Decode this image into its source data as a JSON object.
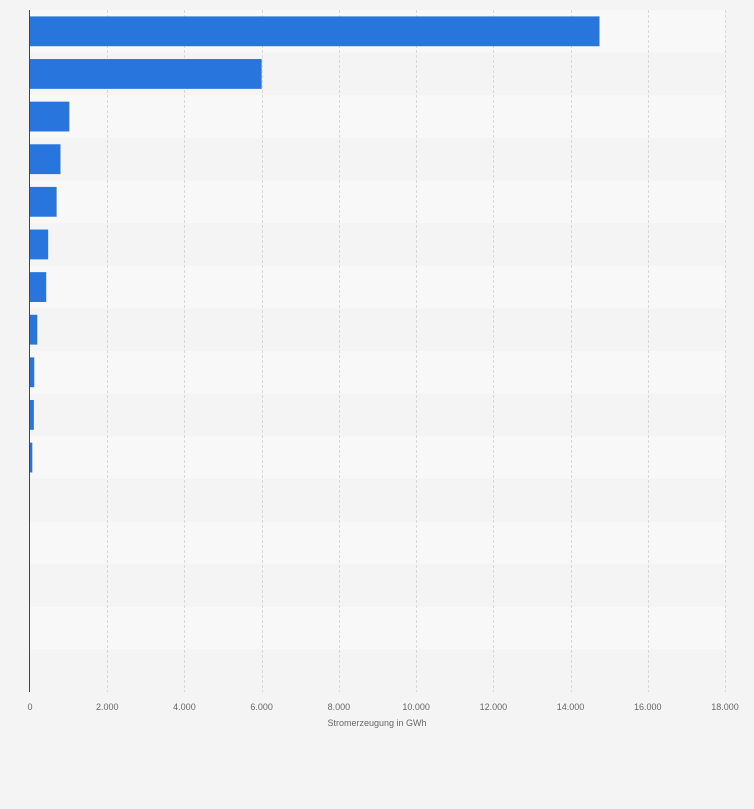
{
  "chart_data": {
    "type": "bar",
    "orientation": "horizontal",
    "categories": [
      "",
      "",
      "",
      "",
      "",
      "",
      "",
      "",
      "",
      "",
      "",
      "",
      "",
      "",
      "",
      ""
    ],
    "values": [
      14750,
      6000,
      1020,
      790,
      690,
      470,
      420,
      190,
      110,
      100,
      60,
      0,
      0,
      0,
      0,
      0
    ],
    "xlabel": "Stromerzeugung in GWh",
    "ylabel": "",
    "xlim": [
      0,
      18000
    ],
    "ticks": [
      0,
      2000,
      4000,
      6000,
      8000,
      10000,
      12000,
      14000,
      16000,
      18000
    ],
    "tick_labels": [
      "0",
      "2.000",
      "4.000",
      "6.000",
      "8.000",
      "10.000",
      "12.000",
      "14.000",
      "16.000",
      "18.000"
    ],
    "grid": true,
    "legend": "none",
    "colors": {
      "bar": "#2876dd",
      "band_odd": "#f8f8f8",
      "band_even": "#f4f4f4",
      "grid": "#d9d9d9",
      "axis": "#444444",
      "text": "#666666"
    }
  }
}
